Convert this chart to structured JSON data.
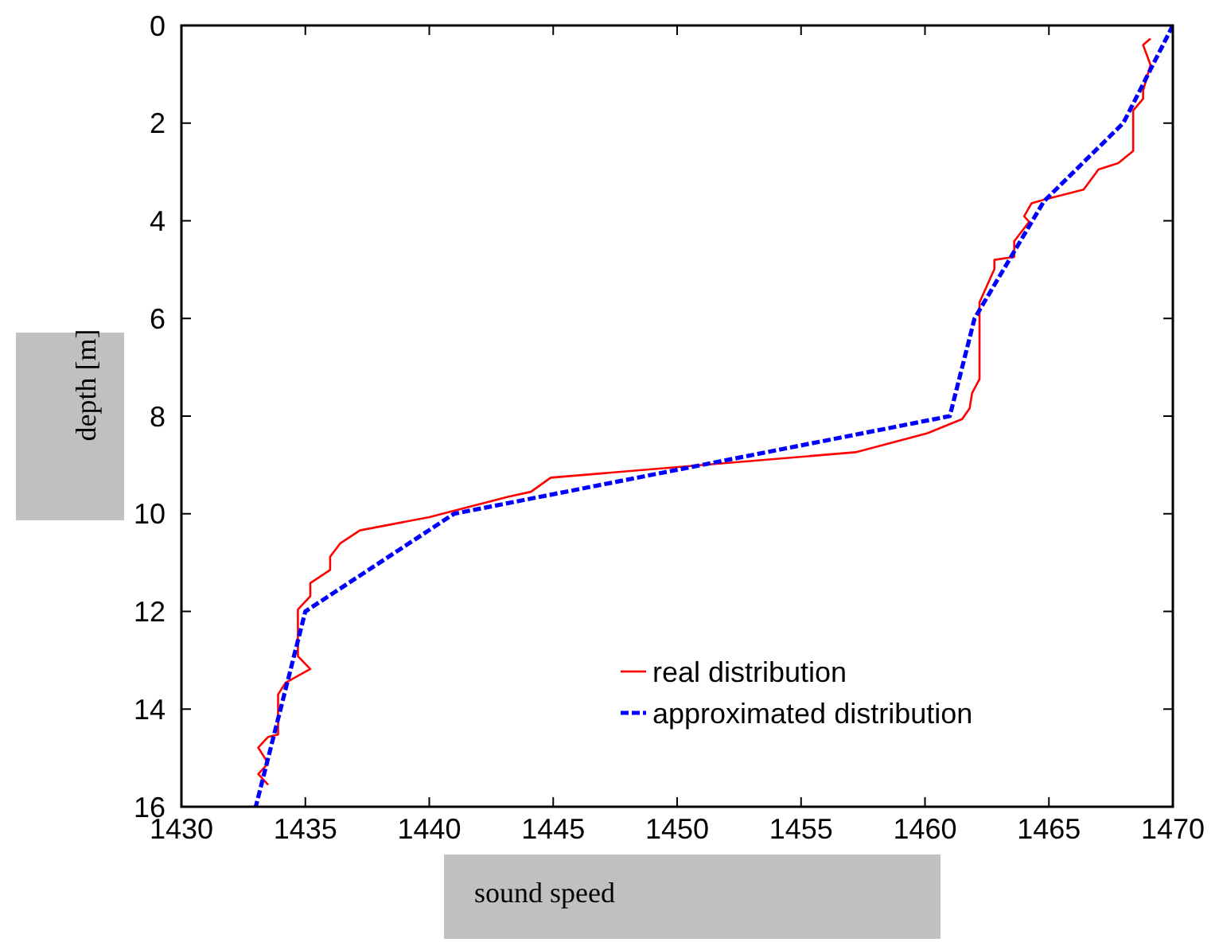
{
  "chart_data": {
    "type": "line",
    "xlabel": "sound speed",
    "ylabel": "depth [m]",
    "xlim": [
      1430,
      1470
    ],
    "xticks": [
      1430,
      1435,
      1440,
      1445,
      1450,
      1455,
      1460,
      1465,
      1470
    ],
    "ylim": [
      16,
      0
    ],
    "yticks": [
      0,
      2,
      4,
      6,
      8,
      10,
      12,
      14,
      16
    ],
    "grid": false,
    "legend": "bottom right",
    "marker": "none",
    "series": [
      {
        "name": "real distribution",
        "color": "#ff0000",
        "line_style": "solid",
        "x": [
          1469.1,
          1468.8,
          1469.1,
          1468.8,
          1468.8,
          1468.4,
          1468.4,
          1467.8,
          1467.0,
          1466.4,
          1464.8,
          1464.3,
          1464.0,
          1464.2,
          1463.6,
          1463.6,
          1462.8,
          1462.8,
          1462.2,
          1462.2,
          1461.9,
          1461.8,
          1461.5,
          1460.1,
          1457.2,
          1444.9,
          1444.1,
          1443.2,
          1440.0,
          1437.2,
          1436.4,
          1436.0,
          1436.0,
          1435.2,
          1435.2,
          1434.7,
          1434.7,
          1435.2,
          1434.2,
          1433.9,
          1433.9,
          1433.5,
          1433.1,
          1433.5,
          1433.1,
          1433.5
        ],
        "values": [
          0.27,
          0.4,
          0.81,
          1.33,
          1.5,
          1.74,
          2.57,
          2.82,
          2.95,
          3.36,
          3.57,
          3.64,
          3.91,
          4.02,
          4.42,
          4.74,
          4.8,
          4.99,
          5.67,
          7.24,
          7.53,
          7.84,
          8.06,
          8.35,
          8.74,
          9.26,
          9.55,
          9.65,
          10.07,
          10.34,
          10.61,
          10.88,
          11.15,
          11.42,
          11.69,
          11.96,
          12.92,
          13.18,
          13.46,
          13.7,
          14.52,
          14.57,
          14.79,
          15.11,
          15.33,
          15.55
        ]
      },
      {
        "name": "approximated distribution",
        "color": "#0000ff",
        "line_style": "dashed",
        "x": [
          1470,
          1468,
          1464.8,
          1462,
          1461,
          1441,
          1435,
          1433
        ],
        "values": [
          0,
          2,
          3.6,
          6,
          8,
          10,
          12,
          16
        ]
      }
    ]
  }
}
